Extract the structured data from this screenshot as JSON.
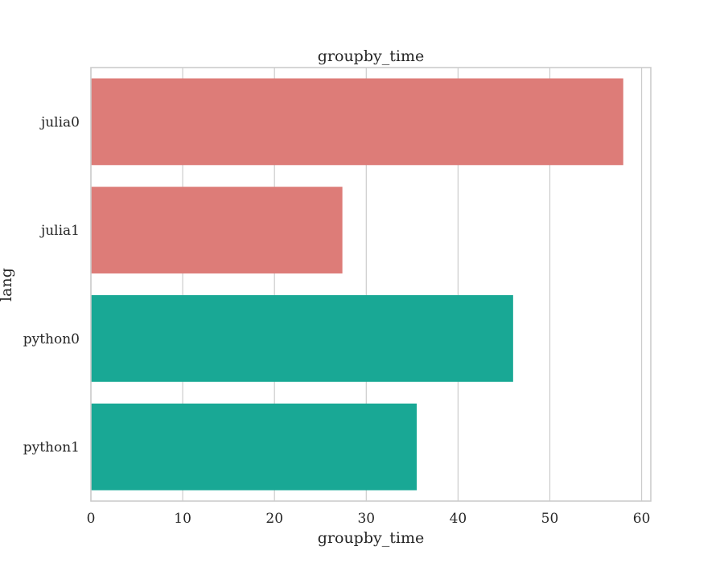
{
  "chart_data": {
    "type": "bar",
    "orientation": "horizontal",
    "title": "groupby_time",
    "xlabel": "groupby_time",
    "ylabel": "lang",
    "categories": [
      "julia0",
      "julia1",
      "python0",
      "python1"
    ],
    "values": [
      58.0,
      27.4,
      46.0,
      35.5
    ],
    "colors": [
      "#dd7c78",
      "#dd7c78",
      "#19a895",
      "#19a895"
    ],
    "xlim": [
      0,
      61
    ],
    "xticks": [
      0,
      10,
      20,
      30,
      40,
      50,
      60
    ],
    "grid": true,
    "legend": "none"
  }
}
